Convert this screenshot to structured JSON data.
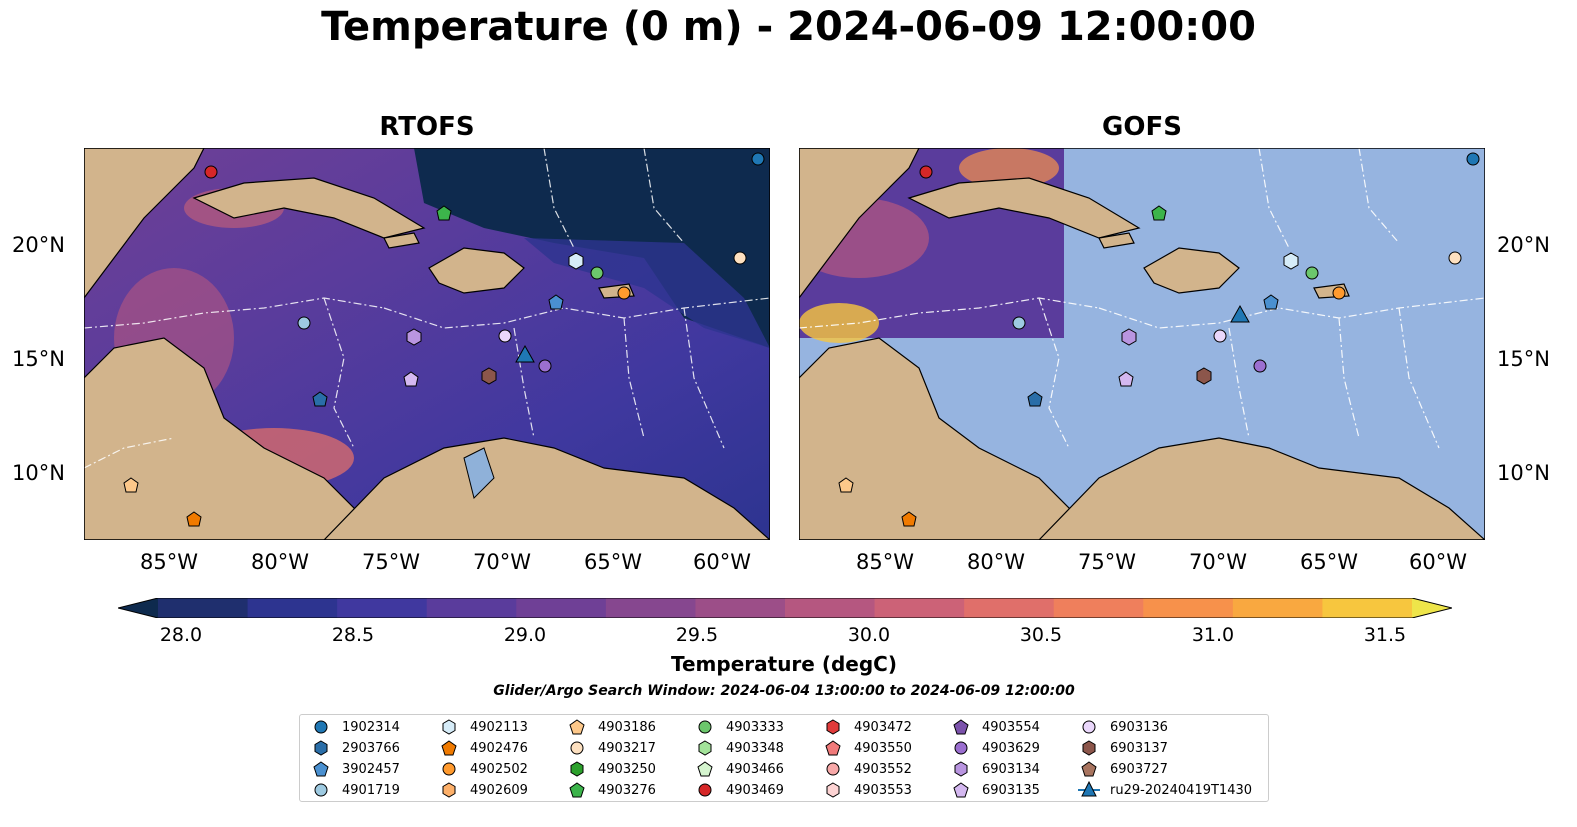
{
  "title": "Temperature (0 m) - 2024-06-09 12:00:00",
  "panels": [
    {
      "title": "RTOFS"
    },
    {
      "title": "GOFS"
    }
  ],
  "lon_ticks": [
    "85°W",
    "80°W",
    "75°W",
    "70°W",
    "65°W",
    "60°W"
  ],
  "lat_ticks": [
    "20°N",
    "15°N",
    "10°N"
  ],
  "colorbar": {
    "label": "Temperature (degC)",
    "ticks": [
      "28.0",
      "28.5",
      "29.0",
      "29.5",
      "30.0",
      "30.5",
      "31.0",
      "31.5"
    ],
    "range": [
      28.0,
      31.5
    ],
    "colors": [
      "#0e2a4e",
      "#1f2f6e",
      "#2d3490",
      "#40389f",
      "#5a3c9c",
      "#6f4096",
      "#86478f",
      "#9c4e88",
      "#b55780",
      "#cc6277",
      "#e06f6a",
      "#ef7f5c",
      "#f7914b",
      "#f9a840",
      "#f7c63e",
      "#eee54a"
    ]
  },
  "search_window": "Glider/Argo Search Window: 2024-06-04 13:00:00 to 2024-06-09 12:00:00",
  "legend": [
    {
      "label": "1902314",
      "marker": "circle",
      "color": "#1f77b4"
    },
    {
      "label": "2903766",
      "marker": "hexagon",
      "color": "#2a6ea8"
    },
    {
      "label": "3902457",
      "marker": "pentagon",
      "color": "#4a90d0"
    },
    {
      "label": "4901719",
      "marker": "circle",
      "color": "#9ecae1"
    },
    {
      "label": "4902113",
      "marker": "hexagon",
      "color": "#d6ecf8"
    },
    {
      "label": "4902476",
      "marker": "pentagon",
      "color": "#f07a00"
    },
    {
      "label": "4902502",
      "marker": "circle",
      "color": "#ff9a2e"
    },
    {
      "label": "4902609",
      "marker": "hexagon",
      "color": "#fdb06a"
    },
    {
      "label": "4903186",
      "marker": "pentagon",
      "color": "#fdc88a"
    },
    {
      "label": "4903217",
      "marker": "circle",
      "color": "#fde0c0"
    },
    {
      "label": "4903250",
      "marker": "hexagon",
      "color": "#2ca02c"
    },
    {
      "label": "4903276",
      "marker": "pentagon",
      "color": "#3cb44b"
    },
    {
      "label": "4903333",
      "marker": "circle",
      "color": "#6cc76c"
    },
    {
      "label": "4903348",
      "marker": "hexagon",
      "color": "#a3e39a"
    },
    {
      "label": "4903466",
      "marker": "pentagon",
      "color": "#d5f5cf"
    },
    {
      "label": "4903469",
      "marker": "circle",
      "color": "#d62728"
    },
    {
      "label": "4903472",
      "marker": "hexagon",
      "color": "#e03a3a"
    },
    {
      "label": "4903550",
      "marker": "pentagon",
      "color": "#f07a7a"
    },
    {
      "label": "4903552",
      "marker": "circle",
      "color": "#f7a8a8"
    },
    {
      "label": "4903553",
      "marker": "hexagon",
      "color": "#fdd3d3"
    },
    {
      "label": "4903554",
      "marker": "pentagon",
      "color": "#7b52ab"
    },
    {
      "label": "4903629",
      "marker": "circle",
      "color": "#9b6fd0"
    },
    {
      "label": "6903134",
      "marker": "hexagon",
      "color": "#b995e0"
    },
    {
      "label": "6903135",
      "marker": "pentagon",
      "color": "#d4b8f0"
    },
    {
      "label": "6903136",
      "marker": "circle",
      "color": "#ead7fb"
    },
    {
      "label": "6903137",
      "marker": "hexagon",
      "color": "#8c564b"
    },
    {
      "label": "6903727",
      "marker": "pentagon",
      "color": "#a8745f"
    },
    {
      "label": "ru29-20240419T1430",
      "marker": "triangle",
      "color": "#1f77b4"
    }
  ]
}
